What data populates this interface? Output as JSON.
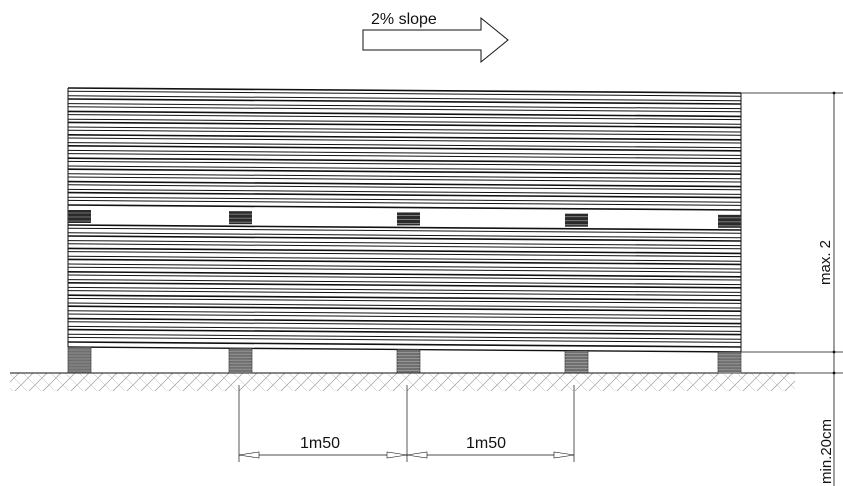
{
  "diagram": {
    "slope_label": "2% slope",
    "height_label": "max. 2",
    "depth_label": "min.20cm",
    "spacing_labels": [
      "1m50",
      "1m50"
    ],
    "colors": {
      "line": "#111111",
      "ground_hatch": "#9a9a9a",
      "block": "#2a2a2a"
    },
    "icons": {
      "slope_arrow": "right-arrow-icon"
    }
  }
}
